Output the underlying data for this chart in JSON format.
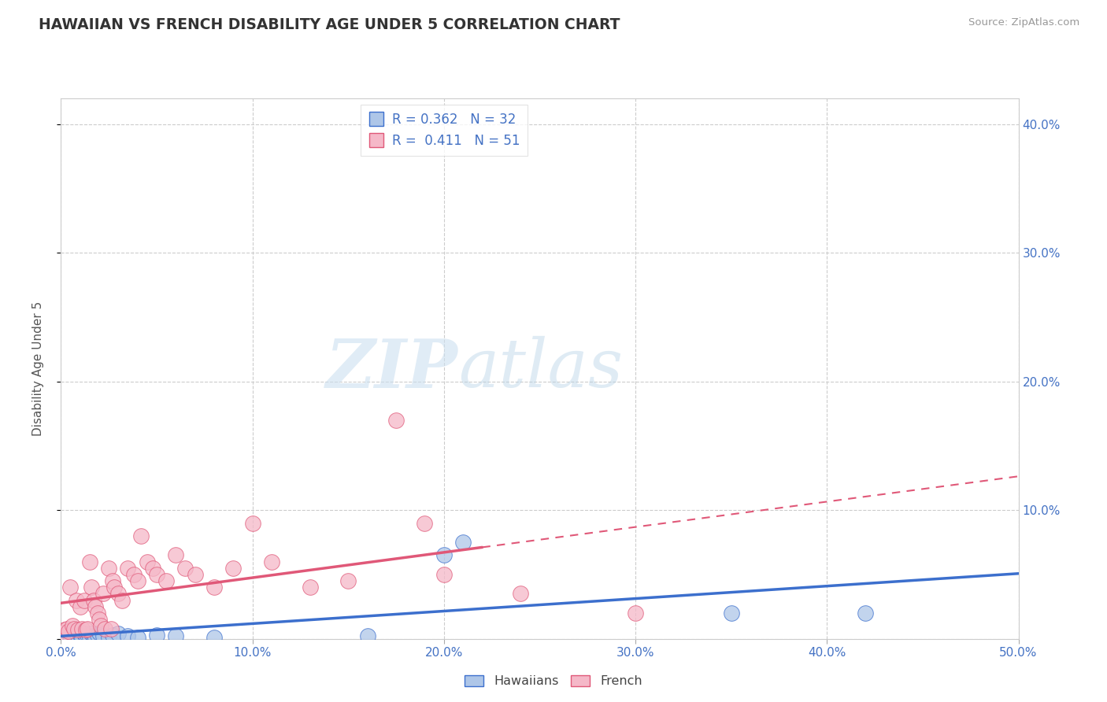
{
  "title": "HAWAIIAN VS FRENCH DISABILITY AGE UNDER 5 CORRELATION CHART",
  "source": "Source: ZipAtlas.com",
  "ylabel": "Disability Age Under 5",
  "xlim": [
    0.0,
    0.5
  ],
  "ylim": [
    0.0,
    0.42
  ],
  "xticks": [
    0.0,
    0.1,
    0.2,
    0.3,
    0.4,
    0.5
  ],
  "yticks": [
    0.0,
    0.1,
    0.2,
    0.3,
    0.4
  ],
  "xtick_labels": [
    "0.0%",
    "10.0%",
    "20.0%",
    "30.0%",
    "40.0%",
    "50.0%"
  ],
  "ytick_labels": [
    "",
    "10.0%",
    "20.0%",
    "30.0%",
    "40.0%"
  ],
  "legend_r1": "R = 0.362   N = 32",
  "legend_r2": "R =  0.411   N = 51",
  "hawaiian_color": "#aec6e8",
  "french_color": "#f5b8c8",
  "trend_hawaiian_color": "#3c6fcd",
  "trend_french_color": "#e05878",
  "background_color": "#ffffff",
  "watermark_zip": "ZIP",
  "watermark_atlas": "atlas",
  "hawaiians": [
    [
      0.002,
      0.003
    ],
    [
      0.004,
      0.005
    ],
    [
      0.005,
      0.002
    ],
    [
      0.006,
      0.004
    ],
    [
      0.007,
      0.001
    ],
    [
      0.008,
      0.006
    ],
    [
      0.009,
      0.002
    ],
    [
      0.01,
      0.003
    ],
    [
      0.011,
      0.001
    ],
    [
      0.012,
      0.004
    ],
    [
      0.013,
      0.002
    ],
    [
      0.014,
      0.003
    ],
    [
      0.015,
      0.001
    ],
    [
      0.016,
      0.004
    ],
    [
      0.017,
      0.002
    ],
    [
      0.018,
      0.001
    ],
    [
      0.019,
      0.003
    ],
    [
      0.02,
      0.005
    ],
    [
      0.022,
      0.002
    ],
    [
      0.025,
      0.001
    ],
    [
      0.027,
      0.003
    ],
    [
      0.03,
      0.004
    ],
    [
      0.035,
      0.002
    ],
    [
      0.04,
      0.001
    ],
    [
      0.05,
      0.003
    ],
    [
      0.06,
      0.002
    ],
    [
      0.08,
      0.001
    ],
    [
      0.16,
      0.002
    ],
    [
      0.2,
      0.065
    ],
    [
      0.21,
      0.075
    ],
    [
      0.35,
      0.02
    ],
    [
      0.42,
      0.02
    ]
  ],
  "french": [
    [
      0.001,
      0.005
    ],
    [
      0.002,
      0.007
    ],
    [
      0.003,
      0.008
    ],
    [
      0.004,
      0.006
    ],
    [
      0.005,
      0.04
    ],
    [
      0.006,
      0.01
    ],
    [
      0.007,
      0.008
    ],
    [
      0.008,
      0.03
    ],
    [
      0.009,
      0.007
    ],
    [
      0.01,
      0.025
    ],
    [
      0.011,
      0.008
    ],
    [
      0.012,
      0.03
    ],
    [
      0.013,
      0.007
    ],
    [
      0.014,
      0.008
    ],
    [
      0.015,
      0.06
    ],
    [
      0.016,
      0.04
    ],
    [
      0.017,
      0.03
    ],
    [
      0.018,
      0.025
    ],
    [
      0.019,
      0.02
    ],
    [
      0.02,
      0.015
    ],
    [
      0.021,
      0.01
    ],
    [
      0.022,
      0.035
    ],
    [
      0.023,
      0.008
    ],
    [
      0.025,
      0.055
    ],
    [
      0.026,
      0.008
    ],
    [
      0.027,
      0.045
    ],
    [
      0.028,
      0.04
    ],
    [
      0.03,
      0.035
    ],
    [
      0.032,
      0.03
    ],
    [
      0.035,
      0.055
    ],
    [
      0.038,
      0.05
    ],
    [
      0.04,
      0.045
    ],
    [
      0.042,
      0.08
    ],
    [
      0.045,
      0.06
    ],
    [
      0.048,
      0.055
    ],
    [
      0.05,
      0.05
    ],
    [
      0.055,
      0.045
    ],
    [
      0.06,
      0.065
    ],
    [
      0.065,
      0.055
    ],
    [
      0.07,
      0.05
    ],
    [
      0.08,
      0.04
    ],
    [
      0.09,
      0.055
    ],
    [
      0.1,
      0.09
    ],
    [
      0.11,
      0.06
    ],
    [
      0.13,
      0.04
    ],
    [
      0.15,
      0.045
    ],
    [
      0.175,
      0.17
    ],
    [
      0.19,
      0.09
    ],
    [
      0.2,
      0.05
    ],
    [
      0.24,
      0.035
    ],
    [
      0.3,
      0.02
    ]
  ],
  "french_trend_solid_end": 0.22,
  "hawaiian_trend_solid_end": 0.5
}
